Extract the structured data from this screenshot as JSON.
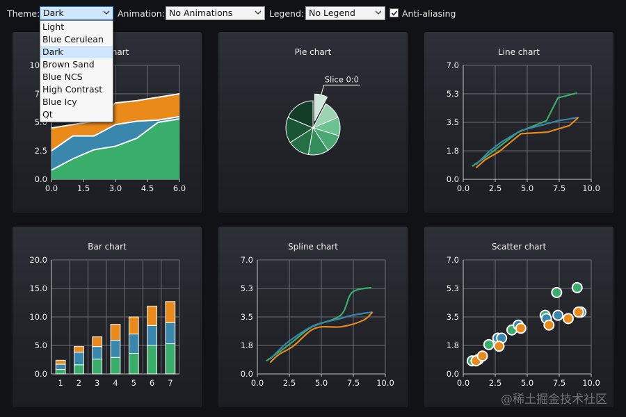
{
  "toolbar": {
    "theme_label": "Theme:",
    "theme_value": "Dark",
    "animation_label": "Animation:",
    "animation_value": "No Animations",
    "legend_label": "Legend:",
    "legend_value": "No Legend",
    "antialias_label": "Anti-aliasing",
    "antialias_checked": true
  },
  "theme_options": [
    "Light",
    "Blue Cerulean",
    "Dark",
    "Brown Sand",
    "Blue NCS",
    "High Contrast",
    "Blue Icy",
    "Qt"
  ],
  "selected_theme_index": 2,
  "watermark": "@稀土掘金技术社区",
  "colors": {
    "green": "#39ae6a",
    "blue": "#3a87ad",
    "orange": "#e98a1b",
    "axis": "#c8c8c8",
    "grid": "#6e7078"
  },
  "chart_data": [
    {
      "type": "area",
      "title": "Area chart",
      "xlim": [
        0,
        6
      ],
      "ylim": [
        0,
        10
      ],
      "xticks": [
        "0.0",
        "1.5",
        "3.0",
        "4.5",
        "6.0"
      ],
      "yticks": [
        "0.0",
        "2.5",
        "5.0",
        "7.5",
        "10.0"
      ],
      "x": [
        0,
        1,
        2,
        3,
        4,
        5,
        6
      ],
      "series": [
        {
          "color": "#39ae6a",
          "values": [
            0.8,
            1.8,
            2.6,
            2.9,
            3.6,
            5.0,
            5.3
          ]
        },
        {
          "color": "#3a87ad",
          "values": [
            2.5,
            3.8,
            3.8,
            4.8,
            5.1,
            5.2,
            5.5
          ]
        },
        {
          "color": "#e98a1b",
          "values": [
            4.5,
            4.8,
            5.1,
            6.7,
            6.9,
            7.2,
            7.5
          ]
        }
      ]
    },
    {
      "type": "pie",
      "title": "Pie chart",
      "label": "Slice 0:0",
      "exploded_index": 0,
      "slices": [
        {
          "value": 0.7,
          "color": "#cde8d8"
        },
        {
          "value": 1.0,
          "color": "#9ad4b1"
        },
        {
          "value": 1.0,
          "color": "#6cc190"
        },
        {
          "value": 1.0,
          "color": "#4aa874"
        },
        {
          "value": 1.1,
          "color": "#338e5c"
        },
        {
          "value": 1.2,
          "color": "#256f47"
        },
        {
          "value": 1.4,
          "color": "#1a5535"
        },
        {
          "value": 1.7,
          "color": "#143d27"
        }
      ]
    },
    {
      "type": "line",
      "title": "Line chart",
      "xlim": [
        0,
        10
      ],
      "ylim": [
        0,
        7
      ],
      "xticks": [
        "0.0",
        "2.5",
        "5.0",
        "7.5",
        "10.0"
      ],
      "yticks": [
        "0.0",
        "1.8",
        "3.5",
        "5.3",
        "7.0"
      ],
      "series": [
        {
          "color": "#39ae6a",
          "x": [
            0.7,
            1.8,
            2.8,
            4.3,
            6.5,
            7.4,
            8.9
          ],
          "y": [
            0.8,
            1.4,
            2.0,
            2.9,
            3.6,
            5.0,
            5.3
          ]
        },
        {
          "color": "#3a87ad",
          "x": [
            1.0,
            2.0,
            3.0,
            4.5,
            6.5,
            7.4,
            9.0
          ],
          "y": [
            0.9,
            1.7,
            2.3,
            3.0,
            3.4,
            3.6,
            3.8
          ]
        },
        {
          "color": "#e98a1b",
          "x": [
            1.0,
            1.7,
            2.8,
            4.5,
            6.6,
            8.3,
            9.0
          ],
          "y": [
            0.7,
            1.2,
            1.7,
            2.8,
            2.9,
            3.3,
            3.8
          ]
        }
      ]
    },
    {
      "type": "bar",
      "title": "Bar chart",
      "categories": [
        "1",
        "2",
        "3",
        "4",
        "5",
        "6",
        "7"
      ],
      "ylim": [
        0,
        20
      ],
      "yticks": [
        "0.0",
        "5.0",
        "10.0",
        "15.0",
        "20.0"
      ],
      "series": [
        {
          "color": "#39ae6a",
          "values": [
            0.8,
            1.6,
            2.6,
            2.9,
            3.6,
            5.0,
            5.3
          ]
        },
        {
          "color": "#3a87ad",
          "values": [
            0.9,
            2.2,
            2.2,
            3.0,
            3.4,
            3.5,
            3.7
          ]
        },
        {
          "color": "#e98a1b",
          "values": [
            0.7,
            1.0,
            1.7,
            2.8,
            3.0,
            3.4,
            3.7
          ]
        }
      ]
    },
    {
      "type": "line",
      "title": "Spline chart",
      "smooth": true,
      "xlim": [
        0,
        10
      ],
      "ylim": [
        0,
        7
      ],
      "xticks": [
        "0.0",
        "2.5",
        "5.0",
        "7.5",
        "10.0"
      ],
      "yticks": [
        "0.0",
        "1.8",
        "3.5",
        "5.3",
        "7.0"
      ],
      "series": [
        {
          "color": "#39ae6a",
          "x": [
            0.7,
            1.8,
            2.8,
            4.3,
            6.5,
            7.4,
            8.9
          ],
          "y": [
            0.8,
            1.4,
            2.0,
            2.9,
            3.6,
            5.0,
            5.3
          ]
        },
        {
          "color": "#3a87ad",
          "x": [
            1.0,
            2.0,
            3.0,
            4.5,
            6.5,
            7.4,
            9.0
          ],
          "y": [
            0.9,
            1.7,
            2.3,
            3.0,
            3.4,
            3.6,
            3.8
          ]
        },
        {
          "color": "#e98a1b",
          "x": [
            1.0,
            1.7,
            2.8,
            4.5,
            6.6,
            8.3,
            9.0
          ],
          "y": [
            0.7,
            1.2,
            1.7,
            2.8,
            2.9,
            3.3,
            3.8
          ]
        }
      ]
    },
    {
      "type": "scatter",
      "title": "Scatter chart",
      "xlim": [
        0,
        10
      ],
      "ylim": [
        0,
        7
      ],
      "xticks": [
        "0.0",
        "2.5",
        "5.0",
        "7.5",
        "10.0"
      ],
      "yticks": [
        "0.0",
        "1.8",
        "3.5",
        "5.3",
        "7.0"
      ],
      "series": [
        {
          "color": "#39ae6a",
          "x": [
            0.7,
            2.0,
            3.8,
            6.4,
            7.3,
            8.9
          ],
          "y": [
            0.8,
            1.8,
            2.7,
            3.6,
            5.0,
            5.3
          ]
        },
        {
          "color": "#3a87ad",
          "x": [
            1.2,
            2.7,
            3.0,
            4.3,
            6.5,
            7.4,
            9.2
          ],
          "y": [
            0.9,
            2.2,
            2.2,
            3.0,
            3.4,
            3.6,
            3.8
          ]
        },
        {
          "color": "#e98a1b",
          "x": [
            1.0,
            1.5,
            2.8,
            4.5,
            6.7,
            8.2,
            9.0
          ],
          "y": [
            0.8,
            1.1,
            1.7,
            2.8,
            3.0,
            3.4,
            3.8
          ]
        }
      ]
    }
  ]
}
